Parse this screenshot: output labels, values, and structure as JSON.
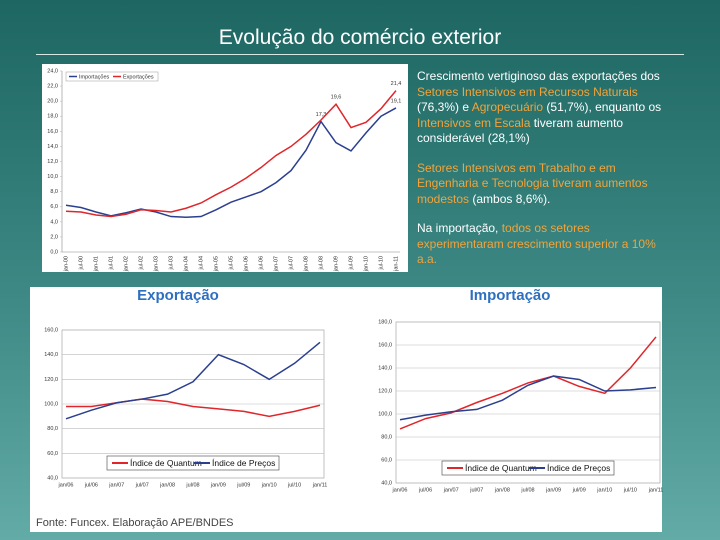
{
  "title": "Evolução do comércio exterior",
  "paragraphs": [
    [
      {
        "text": "Crescimento vertiginoso das exportações dos "
      },
      {
        "text": "Setores Intensivos em Recursos Naturais",
        "color": "#f2a33a"
      },
      {
        "text": " (76,3%) e "
      },
      {
        "text": "Agropecuário",
        "color": "#f2a33a"
      },
      {
        "text": " (51,7%), enquanto os "
      },
      {
        "text": "Intensivos em Escala",
        "color": "#f2a33a"
      },
      {
        "text": " tiveram aumento considerável (28,1%)"
      }
    ],
    [
      {
        "text": "Setores Intensivos em Trabalho e em Engenharia e Tecnologia tiveram aumentos modestos",
        "color": "#f2a33a"
      },
      {
        "text": " (ambos 8,6%)."
      }
    ],
    [
      {
        "text": "Na importação, "
      },
      {
        "text": "todos os setores experimentaram crescimento superior a 10% a.a.",
        "color": "#f2a33a"
      }
    ]
  ],
  "source": "Fonte: Funcex. Elaboração APE/BNDES",
  "chart_data": [
    {
      "type": "line",
      "grid": false,
      "legend": "upper left",
      "categories": [
        "jan-00",
        "jul-00",
        "jan-01",
        "jul-01",
        "jan-02",
        "jul-02",
        "jan-03",
        "jul-03",
        "jan-04",
        "jul-04",
        "jan-05",
        "jul-05",
        "jan-06",
        "jul-06",
        "jan-07",
        "jul-07",
        "jan-08",
        "jul-08",
        "jan-09",
        "jul-09",
        "jan-10",
        "jul-10",
        "jan-11"
      ],
      "series": [
        {
          "name": "Importações",
          "color": "#2b3f8f",
          "values": [
            6.2,
            5.9,
            5.3,
            4.8,
            5.2,
            5.7,
            5.3,
            4.7,
            4.6,
            4.7,
            5.6,
            6.6,
            7.3,
            8.0,
            9.2,
            10.8,
            13.5,
            17.3,
            14.5,
            13.4,
            15.8,
            18.0,
            19.1
          ],
          "value_labels": [
            null,
            null,
            null,
            null,
            null,
            null,
            null,
            null,
            null,
            null,
            null,
            null,
            null,
            null,
            null,
            null,
            null,
            "17,3",
            null,
            null,
            null,
            null,
            "19,1"
          ]
        },
        {
          "name": "Exportações",
          "color": "#e0262b",
          "values": [
            5.4,
            5.3,
            4.9,
            4.7,
            5.0,
            5.6,
            5.5,
            5.3,
            5.8,
            6.5,
            7.6,
            8.6,
            9.8,
            11.2,
            12.8,
            14.0,
            15.6,
            17.5,
            19.6,
            16.5,
            17.2,
            19.0,
            21.4
          ],
          "value_labels": [
            null,
            null,
            null,
            null,
            null,
            null,
            null,
            null,
            null,
            null,
            null,
            null,
            null,
            null,
            null,
            null,
            null,
            null,
            "19,6",
            null,
            null,
            null,
            "21,4"
          ]
        }
      ],
      "ylim": [
        0,
        24
      ],
      "yticks": [
        {
          "value": 0,
          "label": "0,0"
        },
        {
          "value": 2,
          "label": "2,0"
        },
        {
          "value": 4,
          "label": "4,0"
        },
        {
          "value": 6,
          "label": "6,0"
        },
        {
          "value": 8,
          "label": "8,0"
        },
        {
          "value": 10,
          "label": "10,0"
        },
        {
          "value": 12,
          "label": "12,0"
        },
        {
          "value": 14,
          "label": "14,0"
        },
        {
          "value": 16,
          "label": "16,0"
        },
        {
          "value": 18,
          "label": "18,0"
        },
        {
          "value": 20,
          "label": "20,0"
        },
        {
          "value": 22,
          "label": "22,0"
        },
        {
          "value": 24,
          "label": "24,0"
        }
      ]
    },
    {
      "type": "line",
      "title": "Exportação",
      "grid": true,
      "legend": "lower center",
      "categories": [
        "jan/06",
        "jul/06",
        "jan/07",
        "jul/07",
        "jan/08",
        "jul/08",
        "jan/09",
        "jul/09",
        "jan/10",
        "jul/10",
        "jan/11"
      ],
      "series": [
        {
          "name": "Índice de Quantum",
          "color": "#e0262b",
          "values": [
            98,
            98,
            101,
            104,
            102,
            98,
            96,
            94,
            90,
            94,
            99
          ]
        },
        {
          "name": "Índice de Preços",
          "color": "#2b3f8f",
          "values": [
            88,
            95,
            101,
            104,
            108,
            118,
            140,
            132,
            120,
            133,
            150
          ]
        }
      ],
      "ylim": [
        40,
        160
      ],
      "yticks": [
        {
          "value": 40,
          "label": "40,0"
        },
        {
          "value": 60,
          "label": "60,0"
        },
        {
          "value": 80,
          "label": "80,0"
        },
        {
          "value": 100,
          "label": "100,0"
        },
        {
          "value": 120,
          "label": "120,0"
        },
        {
          "value": 140,
          "label": "140,0"
        },
        {
          "value": 160,
          "label": "160,0"
        }
      ]
    },
    {
      "type": "line",
      "title": "Importação",
      "grid": true,
      "legend": "lower center",
      "categories": [
        "jan/06",
        "jul/06",
        "jan/07",
        "jul/07",
        "jan/08",
        "jul/08",
        "jan/09",
        "jul/09",
        "jan/10",
        "jul/10",
        "jan/11"
      ],
      "series": [
        {
          "name": "Índice de Quantum",
          "color": "#e0262b",
          "values": [
            87,
            96,
            101,
            110,
            118,
            127,
            133,
            124,
            118,
            140,
            167
          ]
        },
        {
          "name": "Índice de Preços",
          "color": "#2b3f8f",
          "values": [
            95,
            99,
            102,
            104,
            112,
            125,
            133,
            130,
            120,
            121,
            123
          ]
        }
      ],
      "ylim": [
        40,
        180
      ],
      "yticks": [
        {
          "value": 40,
          "label": "40,0"
        },
        {
          "value": 60,
          "label": "60,0"
        },
        {
          "value": 80,
          "label": "80,0"
        },
        {
          "value": 100,
          "label": "100,0"
        },
        {
          "value": 120,
          "label": "120,0"
        },
        {
          "value": 140,
          "label": "140,0"
        },
        {
          "value": 160,
          "label": "160,0"
        },
        {
          "value": 180,
          "label": "180,0"
        }
      ]
    }
  ]
}
